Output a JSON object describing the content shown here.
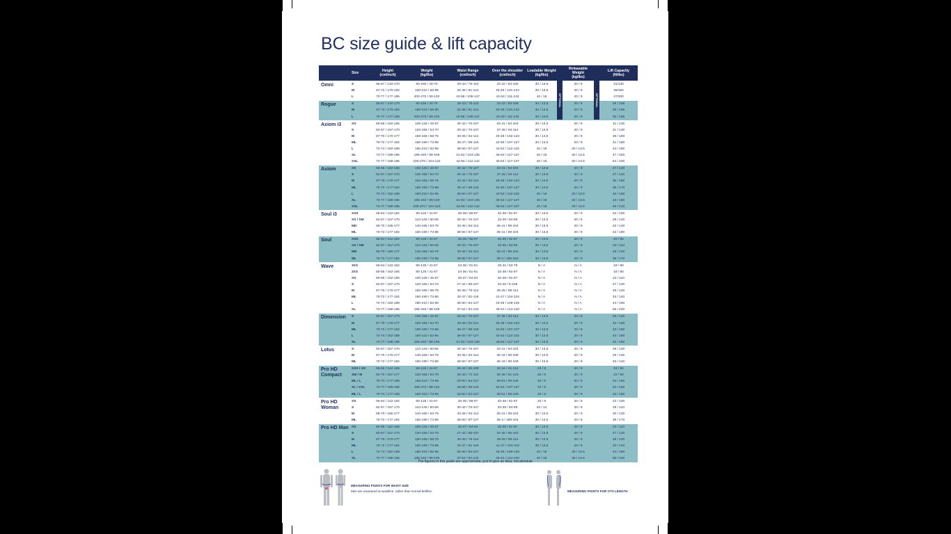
{
  "title": "BC size guide & lift capacity",
  "headers": [
    "",
    "Size",
    "Height\n(cm/inch)",
    "Weight\n(kg/lbs)",
    "Waist Range\n(cm/inch)",
    "Over the shoulder\n(cm/inch)",
    "Loadable Weight\n(kg/lbs)",
    "Releasable Weight\n(kg/lbs)",
    "Lift Capacity\n(N/lbs)"
  ],
  "optional_label": "OPTIONAL",
  "colors": {
    "header": "#1f2d5a",
    "shaded_row": "#8dbec5",
    "text": "#1f2d5a"
  },
  "groups": [
    {
      "model": "Omni",
      "shaded": false,
      "rows": [
        [
          "S",
          "55-67 / 140-170",
          "90-155 / 40-70",
          "29-43 / 75-110",
          "33-42 / 83-106",
          "30 / 13.5",
          "20 / 9",
          "31/130"
        ],
        [
          "M",
          "67-72 / 170-182",
          "150-210 / 68-95",
          "32-48 / 81-121",
          "40-49 / 101-124",
          "30 / 13.5",
          "20 / 9",
          "36/160"
        ],
        [
          "L",
          "70-77 / 177-195",
          "200-270 / 90-120",
          "42-58 / 106-147",
          "44-53 / 111-134",
          "40 / 18",
          "20 / 9",
          "47/200"
        ]
      ]
    },
    {
      "model": "Rogue",
      "shaded": true,
      "rows": [
        [
          "S",
          "55-67 / 140-170",
          "90-155 / 40-70",
          "29-43 / 75-110",
          "33-42 / 83-106",
          "30 / 13.5",
          "20 / 9",
          "35 / 155"
        ],
        [
          "M",
          "67-72 / 170-182",
          "150-210 / 68-95",
          "32-48 / 81-121",
          "40-49 / 101-124",
          "30 / 13.5",
          "20 / 9",
          "35 / 155"
        ],
        [
          "L",
          "70-77 / 177-195",
          "200-270 / 90-120",
          "42-58 / 106-147",
          "44-53 / 111-134",
          "30 / 13.5",
          "20 / 9",
          "35 / 155"
        ]
      ]
    },
    {
      "model": "Axiom i3",
      "shaded": false,
      "rows": [
        [
          "XS",
          "60-65 / 152-165",
          "100-125 / 45-57",
          "30-42 / 76-107",
          "33-41 / 84-104",
          "30 / 13.5",
          "20 / 9",
          "31 / 130"
        ],
        [
          "S",
          "62-67 / 157-170",
          "120-155 / 54-70",
          "30-42 / 76-107",
          "37-45 / 94-114",
          "30 / 13.5",
          "20 / 9",
          "31 / 130"
        ],
        [
          "M",
          "67-70 / 170-177",
          "150-165 / 68-75",
          "33-45 / 84-114",
          "40-48 / 102-123",
          "30 / 13.5",
          "20 / 9",
          "36 / 160"
        ],
        [
          "ML",
          "70-72 / 177-182",
          "160-190 / 73-86",
          "35-47 / 89-119",
          "42-50 / 107-127",
          "30 / 13.5",
          "20 / 9",
          "41 / 180"
        ],
        [
          "L",
          "72-74 / 182-188",
          "180-210 / 82-95",
          "38-50 / 97-127",
          "44-52 / 112-132",
          "40 / 18",
          "30 / 13.5",
          "44 / 190"
        ],
        [
          "XL",
          "74-77 / 188-195",
          "195-240 / 89-109",
          "41-53 / 104-135",
          "46-54 / 117-137",
          "40 / 18",
          "30 / 13.5",
          "47 / 200"
        ],
        [
          "XXL",
          "74-77 / 188-195",
          "230-270 / 104-122",
          "44-56 / 112-142",
          "46-54 / 117-137",
          "40 / 18",
          "30 / 13.5",
          "54 / 230"
        ]
      ]
    },
    {
      "model": "Axiom",
      "shaded": true,
      "rows": [
        [
          "XS",
          "60-65 / 152-165",
          "100-125 / 45-57",
          "30-42 / 76-107",
          "33-41 / 84-104",
          "30 / 13.5",
          "20 / 9",
          "27 / 120"
        ],
        [
          "S",
          "62-67 / 157-170",
          "120-155 / 54-70",
          "30-42 / 76-107",
          "37-45 / 94-114",
          "30 / 13.5",
          "20 / 9",
          "27 / 120"
        ],
        [
          "M",
          "67-70 / 170-177",
          "150-165 / 68-75",
          "33-45 / 84-114",
          "40-48 / 102-123",
          "30 / 13.5",
          "20 / 9",
          "35 / 150"
        ],
        [
          "ML",
          "70-72 / 177-182",
          "160-190 / 73-86",
          "35-47 / 89-119",
          "42-50 / 107-127",
          "30 / 13.5",
          "20 / 9",
          "39 / 170"
        ],
        [
          "L",
          "72-74 / 182-188",
          "180-210 / 82-95",
          "38-50 / 97-127",
          "44-52 / 112-132",
          "40 / 18",
          "30 / 13.5",
          "40 / 180"
        ],
        [
          "XL",
          "74-77 / 188-195",
          "195-240 / 89-109",
          "41-53 / 104-135",
          "46-54 / 117-137",
          "40 / 18",
          "30 / 13.5",
          "43 / 190"
        ],
        [
          "XXL",
          "74-77 / 188-195",
          "230-270 / 104-122",
          "44-56 / 112-142",
          "46-54 / 117-137",
          "40 / 18",
          "30 / 13.5",
          "48 / 210"
        ]
      ]
    },
    {
      "model": "Soul i3",
      "shaded": false,
      "rows": [
        [
          "XXS",
          "56-64 / 142-162",
          "90-125 / 41-57",
          "26-38 / 66-97",
          "32-38 / 81-97",
          "30 / 13.5",
          "20 / 9",
          "22 / 100"
        ],
        [
          "XS / SM",
          "62-67 / 157-170",
          "110-145 / 50-66",
          "30-42 / 76-107",
          "33-39 / 84-99",
          "30 / 13.5",
          "20 / 9",
          "28 / 120"
        ],
        [
          "MD",
          "65-70 / 165-177",
          "140-165 / 63-75",
          "33-45 / 84-114",
          "35-41 / 89-104",
          "30 / 13.5",
          "20 / 9",
          "32 / 140"
        ],
        [
          "ML",
          "70-72 / 177-182",
          "160-190 / 73-86",
          "38-50 / 97-127",
          "35-41 / 89-104",
          "30 / 13.5",
          "20 / 9",
          "42 / 180"
        ]
      ]
    },
    {
      "model": "Soul",
      "shaded": true,
      "rows": [
        [
          "XXS",
          "56-64 / 142-162",
          "90-125 / 41-57",
          "26-38 / 66-97",
          "32-38 / 81-97",
          "30 / 13.5",
          "20 / 9",
          "20 / 90"
        ],
        [
          "XS / SM",
          "62-67 / 157-170",
          "110-145 / 50-66",
          "30-42 / 76-107",
          "33-39 / 84-99",
          "30 / 13.5",
          "20 / 9",
          "24 / 110"
        ],
        [
          "MD",
          "65-70 / 165-177",
          "140-165 / 63-75",
          "33-45 / 84-114",
          "35-41 / 89-104",
          "30 / 13.5",
          "20 / 9",
          "29 / 130"
        ],
        [
          "ML",
          "70-72 / 177-182",
          "160-190 / 73-86",
          "38-50 / 97-127",
          "35-4 / 189-104",
          "30 / 13.5",
          "20 / 9",
          "38 / 170"
        ]
      ]
    },
    {
      "model": "Wave",
      "shaded": false,
      "rows": [
        [
          "3XS",
          "56-64 / 142-162",
          "90-125 / 41-57",
          "24-36 / 61-91",
          "25-31 / 63-79",
          "N / A",
          "N / A",
          "18 / 80"
        ],
        [
          "2XS",
          "60-65 / 152-165",
          "90-125 / 41-57",
          "24-36 / 61-91",
          "32-38 / 81-97",
          "N / A",
          "N / A",
          "18 / 80"
        ],
        [
          "XS",
          "60-65 / 152-165",
          "100-125 / 45-57",
          "25-37 / 64-94",
          "32-38 / 81-97",
          "N / A",
          "N / A",
          "24 / 110"
        ],
        [
          "S",
          "62-67 / 157-170",
          "120-155 / 54-70",
          "27-42 / 69-107",
          "34-40 / 6-105",
          "N / A",
          "N / A",
          "27 / 120"
        ],
        [
          "M",
          "67-70 / 170-177",
          "150-165 / 68-75",
          "30-45 / 76-114",
          "39-45 / 99-114",
          "N / A",
          "N / A",
          "29 / 120"
        ],
        [
          "ML",
          "70-72 / 177-182",
          "160-190 / 73-86",
          "32-47 / 81-119",
          "41-47 / 104-119",
          "N / A",
          "N / A",
          "33 / 140"
        ],
        [
          "L",
          "72-74 / 182-188",
          "180-210 / 82-95",
          "35-50 / 84-127",
          "43-49 / 109-125",
          "N / A",
          "N / A",
          "44 / 190"
        ],
        [
          "XL",
          "74-77 / 188-195",
          "195-240 / 88-109",
          "37-52 / 94-132",
          "45-51 / 114-130",
          "N / A",
          "N / A",
          "55 / 240"
        ]
      ]
    },
    {
      "model": "Dimension",
      "shaded": true,
      "rows": [
        [
          "S",
          "62-67 / 157-170",
          "120-155 / 45-57",
          "30-42 / 76-107",
          "37-45 / 94-114",
          "30 / 13.5",
          "20 / 9",
          "29 / 120"
        ],
        [
          "M",
          "67-70 / 170-177",
          "150-165 / 54-70",
          "33-45 / 84-114",
          "40-48 / 102-123",
          "30 / 13.5",
          "20 / 9",
          "42 / 180"
        ],
        [
          "ML",
          "70-72 / 177-182",
          "160-190 / 73-86",
          "35-47 / 89-119",
          "42-50 / 107-127",
          "30 / 13.5",
          "20 / 9",
          "42 / 180"
        ],
        [
          "L",
          "72-74 / 182-188",
          "180-210 / 82-95",
          "38-50 / 97-127",
          "44-52 / 112-132",
          "30 / 13.5",
          "20 / 9",
          "42 / 180"
        ],
        [
          "XL",
          "74-77 / 188-195",
          "195-240 / 88-109",
          "41-53 / 104-135",
          "46-54 / 117-137",
          "30 / 13.5",
          "20 / 9",
          "42 / 180"
        ]
      ]
    },
    {
      "model": "Lotus",
      "shaded": false,
      "rows": [
        [
          "S",
          "62-67 / 157-170",
          "110-145 / 50-56",
          "30-42 / 76-107",
          "33-41 / 84-104",
          "30 / 13.5",
          "20 / 9",
          "29 / 120"
        ],
        [
          "M",
          "67-70 / 170-177",
          "140-165 / 64-75",
          "33-45 / 84-114",
          "35-43 / 89-109",
          "30 / 13.5",
          "20 / 9",
          "29 / 130"
        ],
        [
          "ML",
          "70-72 / 177-182",
          "160-190 / 73-86",
          "38-50 / 97-127",
          "35-43 / 89-109",
          "30 / 13.5",
          "20 / 9",
          "33 / 140"
        ]
      ]
    },
    {
      "model": "Pro HD Compact",
      "shaded": true,
      "rows": [
        [
          "XXS / XS",
          "56-65 / 142-165",
          "90-125 / 41-57",
          "26-43 / 66-109",
          "32-44 / 81-112",
          "20 / 9",
          "20 / 9",
          "22 / 90"
        ],
        [
          "SM / M",
          "62-70 / 157-177",
          "120-165 / 54-70",
          "28-45 / 71-114",
          "36-48 / 91-123",
          "20 / 9",
          "20 / 9",
          "22 / 90"
        ],
        [
          "ML / L",
          "70-74 / 177-188",
          "160-210 / 73-95",
          "33-50 / 84-127",
          "39-51 / 99-130",
          "20 / 9",
          "20 / 9",
          "34 / 150"
        ],
        [
          "XL / XXL",
          "74-77 / 188-195",
          "195-270 / 88-122",
          "39-56 / 99-142",
          "42-54 / 107-137",
          "20 / 9",
          "20 / 9",
          "34 / 150"
        ],
        [
          "ML / L",
          "70-74 / 177-188",
          "160-210 / 73-95",
          "33-50 / 84-127",
          "39-51 / 99-130",
          "20 / 9",
          "20 / 9",
          "34 / 150"
        ]
      ]
    },
    {
      "model": "Pro HD Woman",
      "shaded": false,
      "rows": [
        [
          "XS",
          "56-64 / 142-162",
          "90-125 / 41-57",
          "26-38 / 66-97",
          "32-38 / 81-97",
          "20 / 9",
          "20 / 9",
          "23 / 100"
        ],
        [
          "S",
          "62-67 / 157-170",
          "110-145 / 50-66",
          "30-42 / 76-107",
          "33-39 / 84-99",
          "26 / 12",
          "20 / 9",
          "25 / 110"
        ],
        [
          "M",
          "65-70 / 165-177",
          "140-165 / 63-75",
          "33-45 / 84-114",
          "35-41 / 89-104",
          "30 / 13.5",
          "20 / 9",
          "30 / 130"
        ],
        [
          "ML",
          "70-72 / 177-182",
          "160-190 / 73-86",
          "38-50 / 97-127",
          "35-4 / 189-104",
          "30 / 13.5",
          "20 / 9",
          "39 / 170"
        ]
      ]
    },
    {
      "model": "Pro HD Man",
      "shaded": true,
      "rows": [
        [
          "XS",
          "60-65 / 152-165",
          "100-125 / 45-57",
          "25-37 / 64-94",
          "32-38 / 81-97",
          "30 / 13.5",
          "20 / 9",
          "24 / 110"
        ],
        [
          "S",
          "62-67 / 157-170",
          "120-155 / 54-70",
          "27-42 / 69-107",
          "34-40 / 86-102",
          "30 / 13.5",
          "20 / 9",
          "27 / 120"
        ],
        [
          "M",
          "67-70 / 170-177",
          "150-165 / 68-75",
          "30-45 / 76-114",
          "39-45 / 99-114",
          "30 / 13.5",
          "20 / 9",
          "29 / 120"
        ],
        [
          "ML",
          "70-72 / 177-182",
          "160-190 / 73-86",
          "32-47 / 81-119",
          "41-47 / 104-119",
          "30 / 13.5",
          "20 / 9",
          "33 / 140"
        ],
        [
          "L",
          "72-74 / 182-188",
          "180-210 / 82-95",
          "35-50 / 84-127",
          "43-49 / 109-125",
          "40 / 18",
          "30 / 13.5",
          "44 / 190"
        ],
        [
          "XL",
          "74-77 / 188-195",
          "195-240 / 88-109",
          "37-52 / 94-132",
          "45-51 / 114-130",
          "40 / 18",
          "30 / 13.5",
          "55 / 240"
        ]
      ]
    }
  ],
  "footnote": "The figures in this guide are approximate, just to give an idea, not absolute",
  "waist_caption": {
    "title": "MEASURING POINTS FOR WAIST SIZE",
    "text": "Men are measured at waistline, rather than normal beltline"
  },
  "ots_caption": {
    "title": "MEASURING POINTS FOR OTS LENGTH"
  }
}
